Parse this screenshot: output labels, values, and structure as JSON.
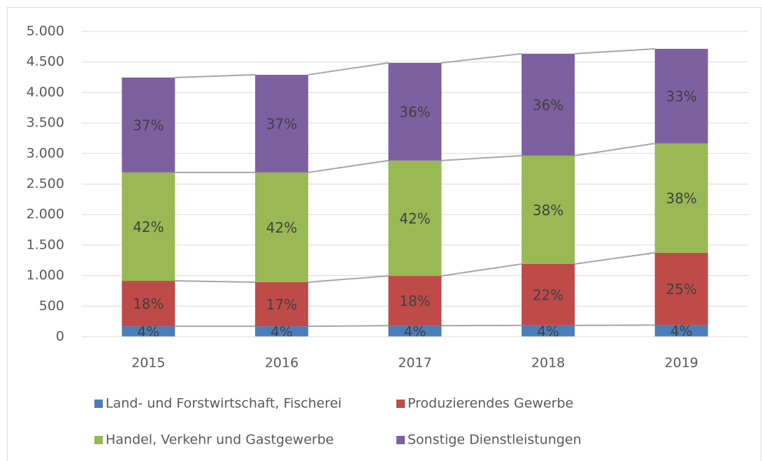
{
  "chart_data": {
    "type": "stacked_bar",
    "categories": [
      "2015",
      "2016",
      "2017",
      "2018",
      "2019"
    ],
    "series": [
      {
        "name": "Land- und Forstwirtschaft, Fischerei",
        "color": "#4a7ebb",
        "values": [
          170,
          170,
          180,
          185,
          190
        ],
        "value_labels": [
          "4%",
          "4%",
          "4%",
          "4%",
          "4%"
        ]
      },
      {
        "name": "Produzierendes Gewerbe",
        "color": "#be4b48",
        "values": [
          745,
          723,
          815,
          1005,
          1185
        ],
        "value_labels": [
          "18%",
          "17%",
          "18%",
          "22%",
          "25%"
        ]
      },
      {
        "name": "Handel, Verkehr und Gastgewerbe",
        "color": "#98b954",
        "values": [
          1775,
          1797,
          1890,
          1775,
          1790
        ],
        "value_labels": [
          "42%",
          "42%",
          "42%",
          "38%",
          "38%"
        ]
      },
      {
        "name": "Sonstige Dienstleistungen",
        "color": "#7d60a0",
        "values": [
          1555,
          1600,
          1600,
          1670,
          1550
        ],
        "value_labels": [
          "37%",
          "37%",
          "36%",
          "36%",
          "33%"
        ]
      }
    ],
    "ylim": [
      0,
      5000
    ],
    "yticks": [
      0,
      500,
      {
        "value": 1000,
        "label": "1.000"
      },
      {
        "value": 1500,
        "label": "1.500"
      },
      {
        "value": 2000,
        "label": "2.000"
      },
      {
        "value": 2500,
        "label": "2.500"
      },
      {
        "value": 3000,
        "label": "3.000"
      },
      {
        "value": 3500,
        "label": "3.500"
      },
      {
        "value": 4000,
        "label": "4.000"
      },
      {
        "value": 4500,
        "label": "4.500"
      },
      {
        "value": 5000,
        "label": "5.000"
      }
    ],
    "grid": true,
    "legend": "bottom"
  }
}
